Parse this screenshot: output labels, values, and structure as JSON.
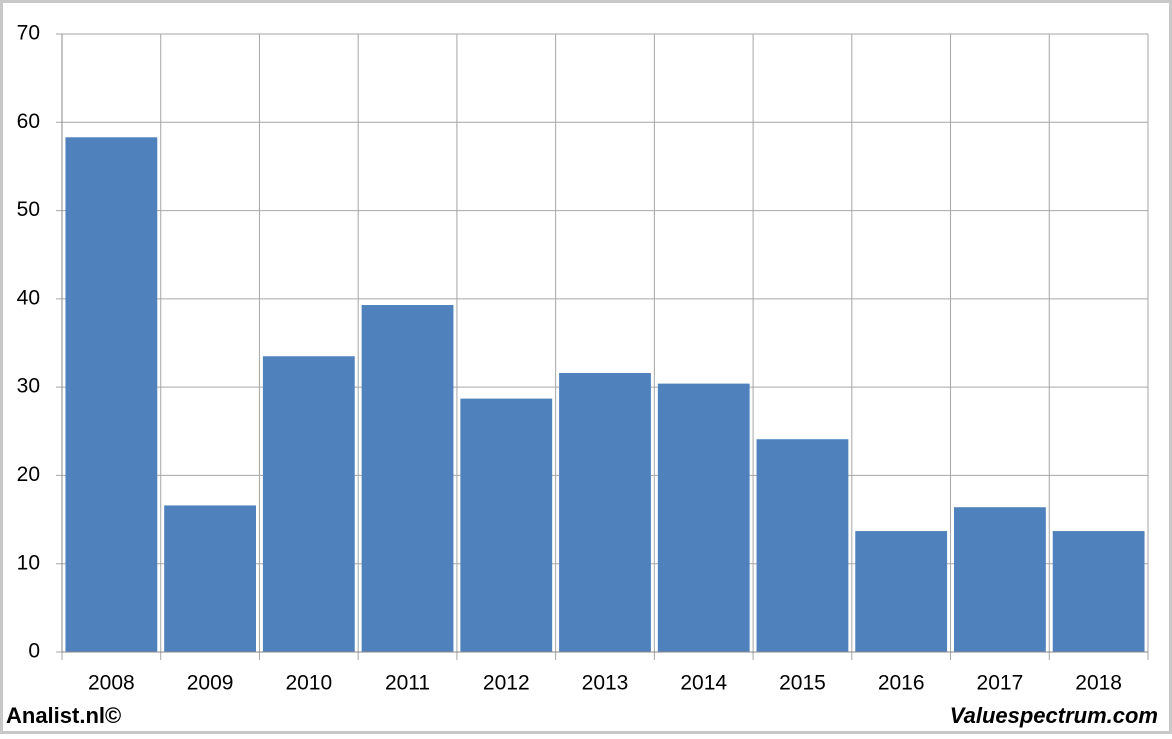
{
  "chart_data": {
    "type": "bar",
    "categories": [
      "2008",
      "2009",
      "2010",
      "2011",
      "2012",
      "2013",
      "2014",
      "2015",
      "2016",
      "2017",
      "2018"
    ],
    "values": [
      58.3,
      16.6,
      33.5,
      39.3,
      28.7,
      31.6,
      30.4,
      24.1,
      13.7,
      16.4,
      13.7
    ],
    "color": "#4f81bd",
    "ylim": [
      0,
      70
    ],
    "yticks": [
      0,
      10,
      20,
      30,
      40,
      50,
      60,
      70
    ],
    "grid": true
  },
  "footer": {
    "left": "Analist.nl©",
    "right": "Valuespectrum.com"
  }
}
